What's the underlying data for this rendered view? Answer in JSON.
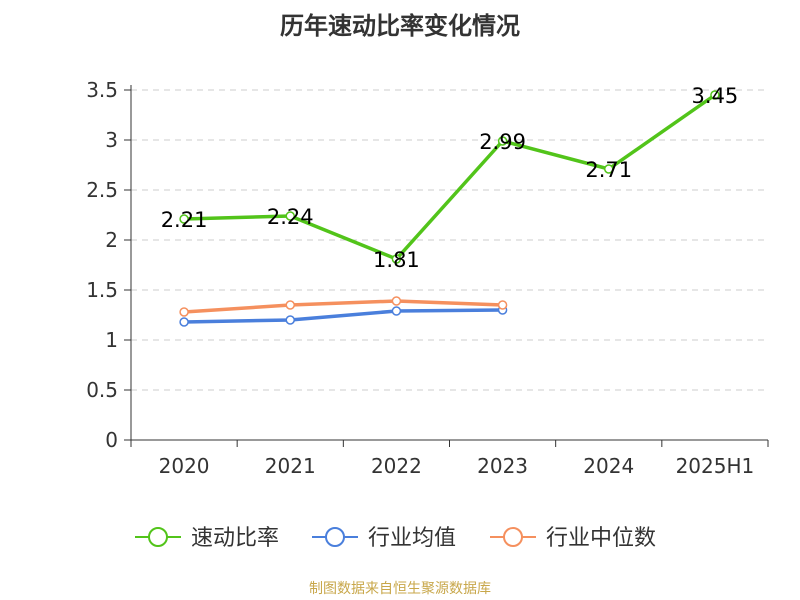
{
  "chart_data": {
    "type": "line",
    "title": "历年速动比率变化情况",
    "categories": [
      "2020",
      "2021",
      "2022",
      "2023",
      "2024",
      "2025H1"
    ],
    "y_ticks": [
      "0",
      "0.5",
      "1",
      "1.5",
      "2",
      "2.5",
      "3",
      "3.5"
    ],
    "ylim": [
      0,
      3.5
    ],
    "grid": true,
    "legend_position": "bottom",
    "series": [
      {
        "name": "速动比率",
        "color": "#52c41a",
        "values": [
          2.21,
          2.24,
          1.81,
          2.99,
          2.71,
          3.45
        ],
        "labels": [
          "2.21",
          "2.24",
          "1.81",
          "2.99",
          "2.71",
          "3.45"
        ]
      },
      {
        "name": "行业均值",
        "color": "#4a7fdc",
        "values": [
          1.18,
          1.2,
          1.29,
          1.3,
          null,
          null
        ]
      },
      {
        "name": "行业中位数",
        "color": "#f5905e",
        "values": [
          1.28,
          1.35,
          1.39,
          1.35,
          null,
          null
        ]
      }
    ]
  },
  "footer": {
    "source": "制图数据来自恒生聚源数据库"
  }
}
